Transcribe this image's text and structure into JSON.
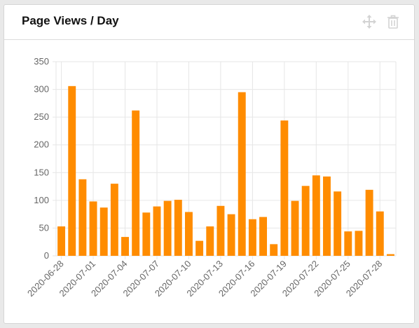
{
  "card": {
    "title": "Page Views / Day",
    "icons": [
      "move-icon",
      "trash-icon"
    ]
  },
  "colors": {
    "bar": "#ff8c00",
    "grid": "#e6e6e6",
    "axis_text": "#666666"
  },
  "chart_data": {
    "type": "bar",
    "title": "",
    "xlabel": "",
    "ylabel": "",
    "ylim": [
      0,
      350
    ],
    "yticks": [
      0,
      50,
      100,
      150,
      200,
      250,
      300,
      350
    ],
    "grid": true,
    "legend": "none",
    "categories": [
      "2020-06-28",
      "2020-06-29",
      "2020-06-30",
      "2020-07-01",
      "2020-07-02",
      "2020-07-03",
      "2020-07-04",
      "2020-07-05",
      "2020-07-06",
      "2020-07-07",
      "2020-07-08",
      "2020-07-09",
      "2020-07-10",
      "2020-07-11",
      "2020-07-12",
      "2020-07-13",
      "2020-07-14",
      "2020-07-15",
      "2020-07-16",
      "2020-07-17",
      "2020-07-18",
      "2020-07-19",
      "2020-07-20",
      "2020-07-21",
      "2020-07-22",
      "2020-07-23",
      "2020-07-24",
      "2020-07-25",
      "2020-07-26",
      "2020-07-27",
      "2020-07-28",
      "2020-07-29"
    ],
    "values": [
      53,
      306,
      138,
      98,
      87,
      130,
      34,
      262,
      78,
      89,
      99,
      101,
      79,
      27,
      53,
      90,
      75,
      295,
      66,
      70,
      21,
      244,
      99,
      126,
      145,
      143,
      116,
      44,
      45,
      119,
      80,
      3
    ],
    "xtick_labels": [
      "2020-06-28",
      "2020-07-01",
      "2020-07-04",
      "2020-07-07",
      "2020-07-10",
      "2020-07-13",
      "2020-07-16",
      "2020-07-19",
      "2020-07-22",
      "2020-07-25",
      "2020-07-28"
    ]
  }
}
